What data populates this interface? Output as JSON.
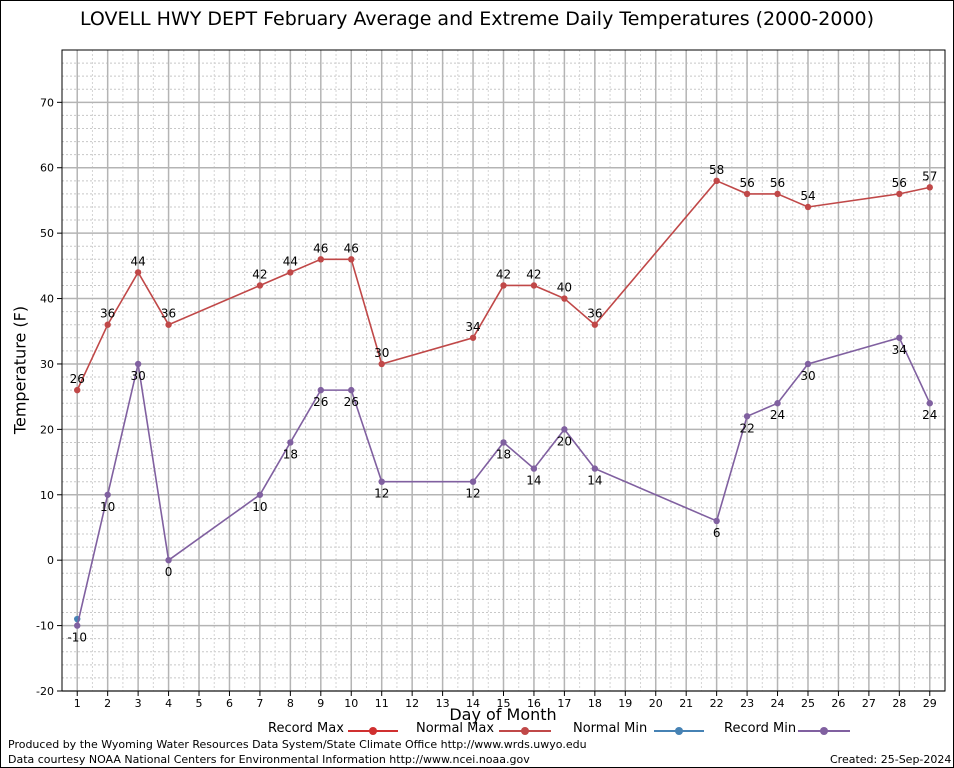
{
  "chart_data": {
    "type": "line",
    "title": "LOVELL HWY DEPT February Average and Extreme Daily Temperatures (2000-2000)",
    "xlabel": "Day of Month",
    "ylabel": "Temperature (F)",
    "xlim": [
      0.5,
      29.5
    ],
    "ylim": [
      -20,
      78
    ],
    "x_ticks": [
      1,
      2,
      3,
      4,
      5,
      6,
      7,
      8,
      9,
      10,
      11,
      12,
      13,
      14,
      15,
      16,
      17,
      18,
      19,
      20,
      21,
      22,
      23,
      24,
      25,
      26,
      27,
      28,
      29
    ],
    "y_ticks": [
      -20,
      -10,
      0,
      10,
      20,
      30,
      40,
      50,
      60,
      70
    ],
    "grid": true,
    "legend_position": "bottom",
    "series": [
      {
        "name": "Record Max",
        "color": "#d03030",
        "x": [],
        "values": []
      },
      {
        "name": "Normal Max",
        "color": "#c04848",
        "x": [
          1,
          2,
          3,
          4,
          7,
          8,
          9,
          10,
          11,
          14,
          15,
          16,
          17,
          18,
          22,
          23,
          24,
          25,
          28,
          29
        ],
        "values": [
          26,
          36,
          44,
          36,
          42,
          44,
          46,
          46,
          30,
          34,
          42,
          42,
          40,
          36,
          58,
          56,
          56,
          54,
          56,
          57
        ],
        "labels_above": true
      },
      {
        "name": "Normal Min",
        "color": "#4682b4",
        "x": [
          1
        ],
        "values": [
          -9
        ],
        "labels_above": false,
        "show_labels": false
      },
      {
        "name": "Record Min",
        "color": "#8060a0",
        "x": [
          1,
          2,
          3,
          4,
          7,
          8,
          9,
          10,
          11,
          14,
          15,
          16,
          17,
          18,
          22,
          23,
          24,
          25,
          28,
          29
        ],
        "values": [
          -10,
          10,
          30,
          0,
          10,
          18,
          26,
          26,
          12,
          12,
          18,
          14,
          20,
          14,
          6,
          22,
          24,
          30,
          34,
          24
        ],
        "labels_above": false
      }
    ]
  },
  "footer": {
    "produced_by": "Produced by the Wyoming Water Resources Data System/State Climate Office http://www.wrds.uwyo.edu",
    "data_courtesy": "Data courtesy NOAA National Centers for Environmental Information http://www.ncei.noaa.gov",
    "created": "Created:  25-Sep-2024"
  }
}
